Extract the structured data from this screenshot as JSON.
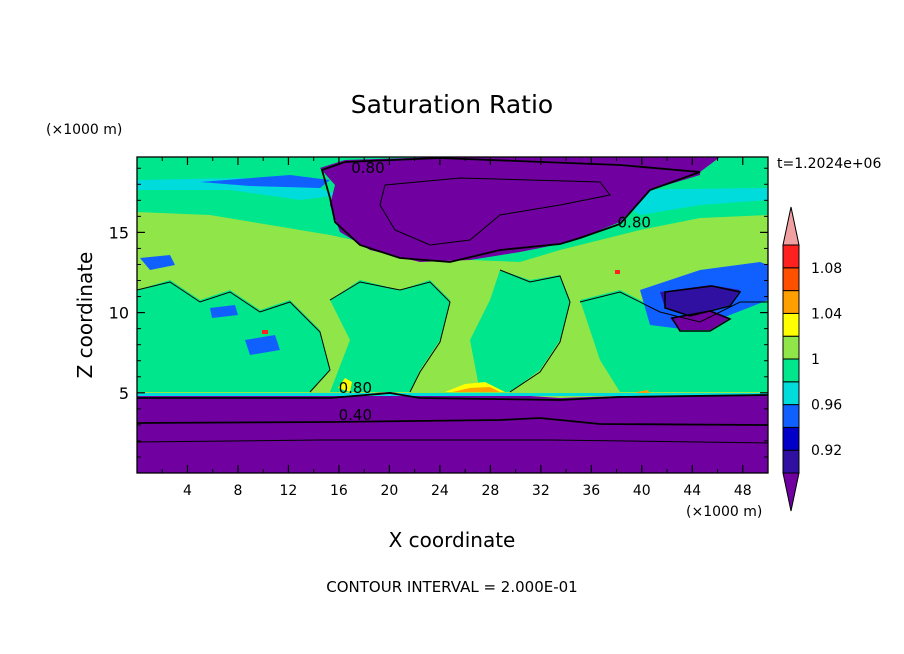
{
  "chart_data": {
    "type": "heatmap",
    "title": "Saturation Ratio",
    "xlabel": "X coordinate",
    "ylabel": "Z coordinate",
    "x_unit": "(×1000 m)",
    "y_unit": "(×1000 m)",
    "xlim": [
      0,
      50
    ],
    "ylim": [
      0,
      19.7
    ],
    "x_ticks": [
      "4",
      "8",
      "12",
      "16",
      "20",
      "24",
      "28",
      "32",
      "36",
      "40",
      "44",
      "48"
    ],
    "y_ticks": [
      "5",
      "10",
      "15"
    ],
    "time_label": "t=1.2024e+06",
    "footer": "CONTOUR INTERVAL = 2.000E-01",
    "contour_labels": [
      {
        "text": "0.80",
        "x": 18.3,
        "z": 18.7
      },
      {
        "text": "0.80",
        "x": 39.4,
        "z": 15.3
      },
      {
        "text": "0.80",
        "x": 17.3,
        "z": 5.0
      },
      {
        "text": "0.40",
        "x": 17.3,
        "z": 3.3
      }
    ],
    "colorbar": {
      "labels": [
        "1.08",
        "1.04",
        "1",
        "0.96",
        "0.92"
      ],
      "levels": [
        {
          "value": "<0.90",
          "color": "#7000a0"
        },
        {
          "value": "0.90-0.92",
          "color": "#3010a0"
        },
        {
          "value": "0.92-0.94",
          "color": "#0000c8"
        },
        {
          "value": "0.94-0.96",
          "color": "#1060ff"
        },
        {
          "value": "0.96-0.98",
          "color": "#00dcdc"
        },
        {
          "value": "0.98-1.00",
          "color": "#00e68c"
        },
        {
          "value": "1.00-1.02",
          "color": "#90e648"
        },
        {
          "value": "1.02-1.04",
          "color": "#ffff00"
        },
        {
          "value": "1.04-1.06",
          "color": "#ffa000"
        },
        {
          "value": "1.06-1.08",
          "color": "#ff5000"
        },
        {
          "value": "1.08-1.10",
          "color": "#ff2020"
        },
        {
          "value": ">1.10",
          "color": "#f0a0a0"
        }
      ]
    }
  }
}
